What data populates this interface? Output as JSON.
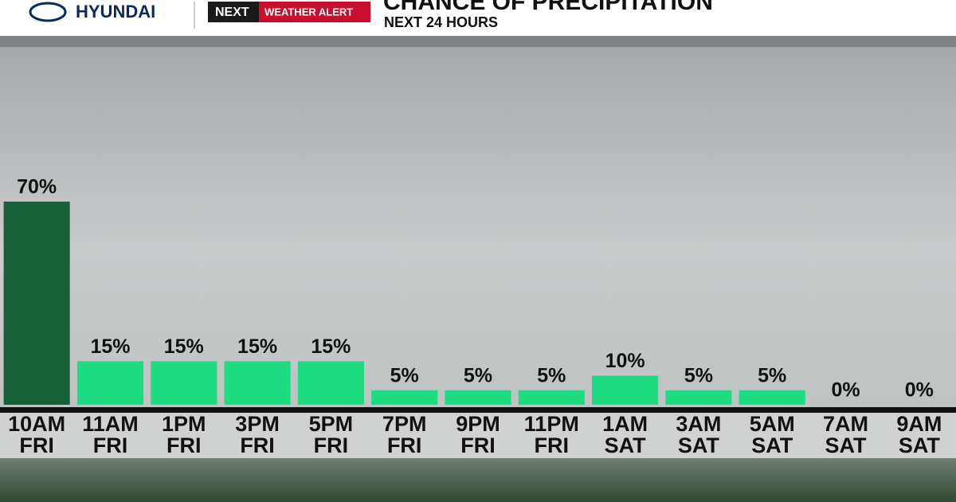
{
  "brand": "HYUNDAI",
  "badge": {
    "logo": "NEXT",
    "text": "WEATHER ALERT"
  },
  "chart_data": {
    "type": "bar",
    "title": "CHANCE OF PRECIPITATION",
    "subtitle": "NEXT 24 HOURS",
    "categories": [
      [
        "10AM",
        "FRI"
      ],
      [
        "11AM",
        "FRI"
      ],
      [
        "1PM",
        "FRI"
      ],
      [
        "3PM",
        "FRI"
      ],
      [
        "5PM",
        "FRI"
      ],
      [
        "7PM",
        "FRI"
      ],
      [
        "9PM",
        "FRI"
      ],
      [
        "11PM",
        "FRI"
      ],
      [
        "1AM",
        "SAT"
      ],
      [
        "3AM",
        "SAT"
      ],
      [
        "5AM",
        "SAT"
      ],
      [
        "7AM",
        "SAT"
      ],
      [
        "9AM",
        "SAT"
      ]
    ],
    "values": [
      70,
      15,
      15,
      15,
      15,
      5,
      5,
      5,
      10,
      5,
      5,
      0,
      0
    ],
    "value_labels": [
      "70%",
      "15%",
      "15%",
      "15%",
      "15%",
      "5%",
      "5%",
      "5%",
      "10%",
      "5%",
      "5%",
      "0%",
      "0%"
    ],
    "colors": [
      "#17603a",
      "#1edc82",
      "#1edc82",
      "#1edc82",
      "#1edc82",
      "#1edc82",
      "#1edc82",
      "#1edc82",
      "#1edc82",
      "#1edc82",
      "#1edc82",
      "#1edc82",
      "#1edc82"
    ],
    "ylim": [
      0,
      70
    ]
  }
}
